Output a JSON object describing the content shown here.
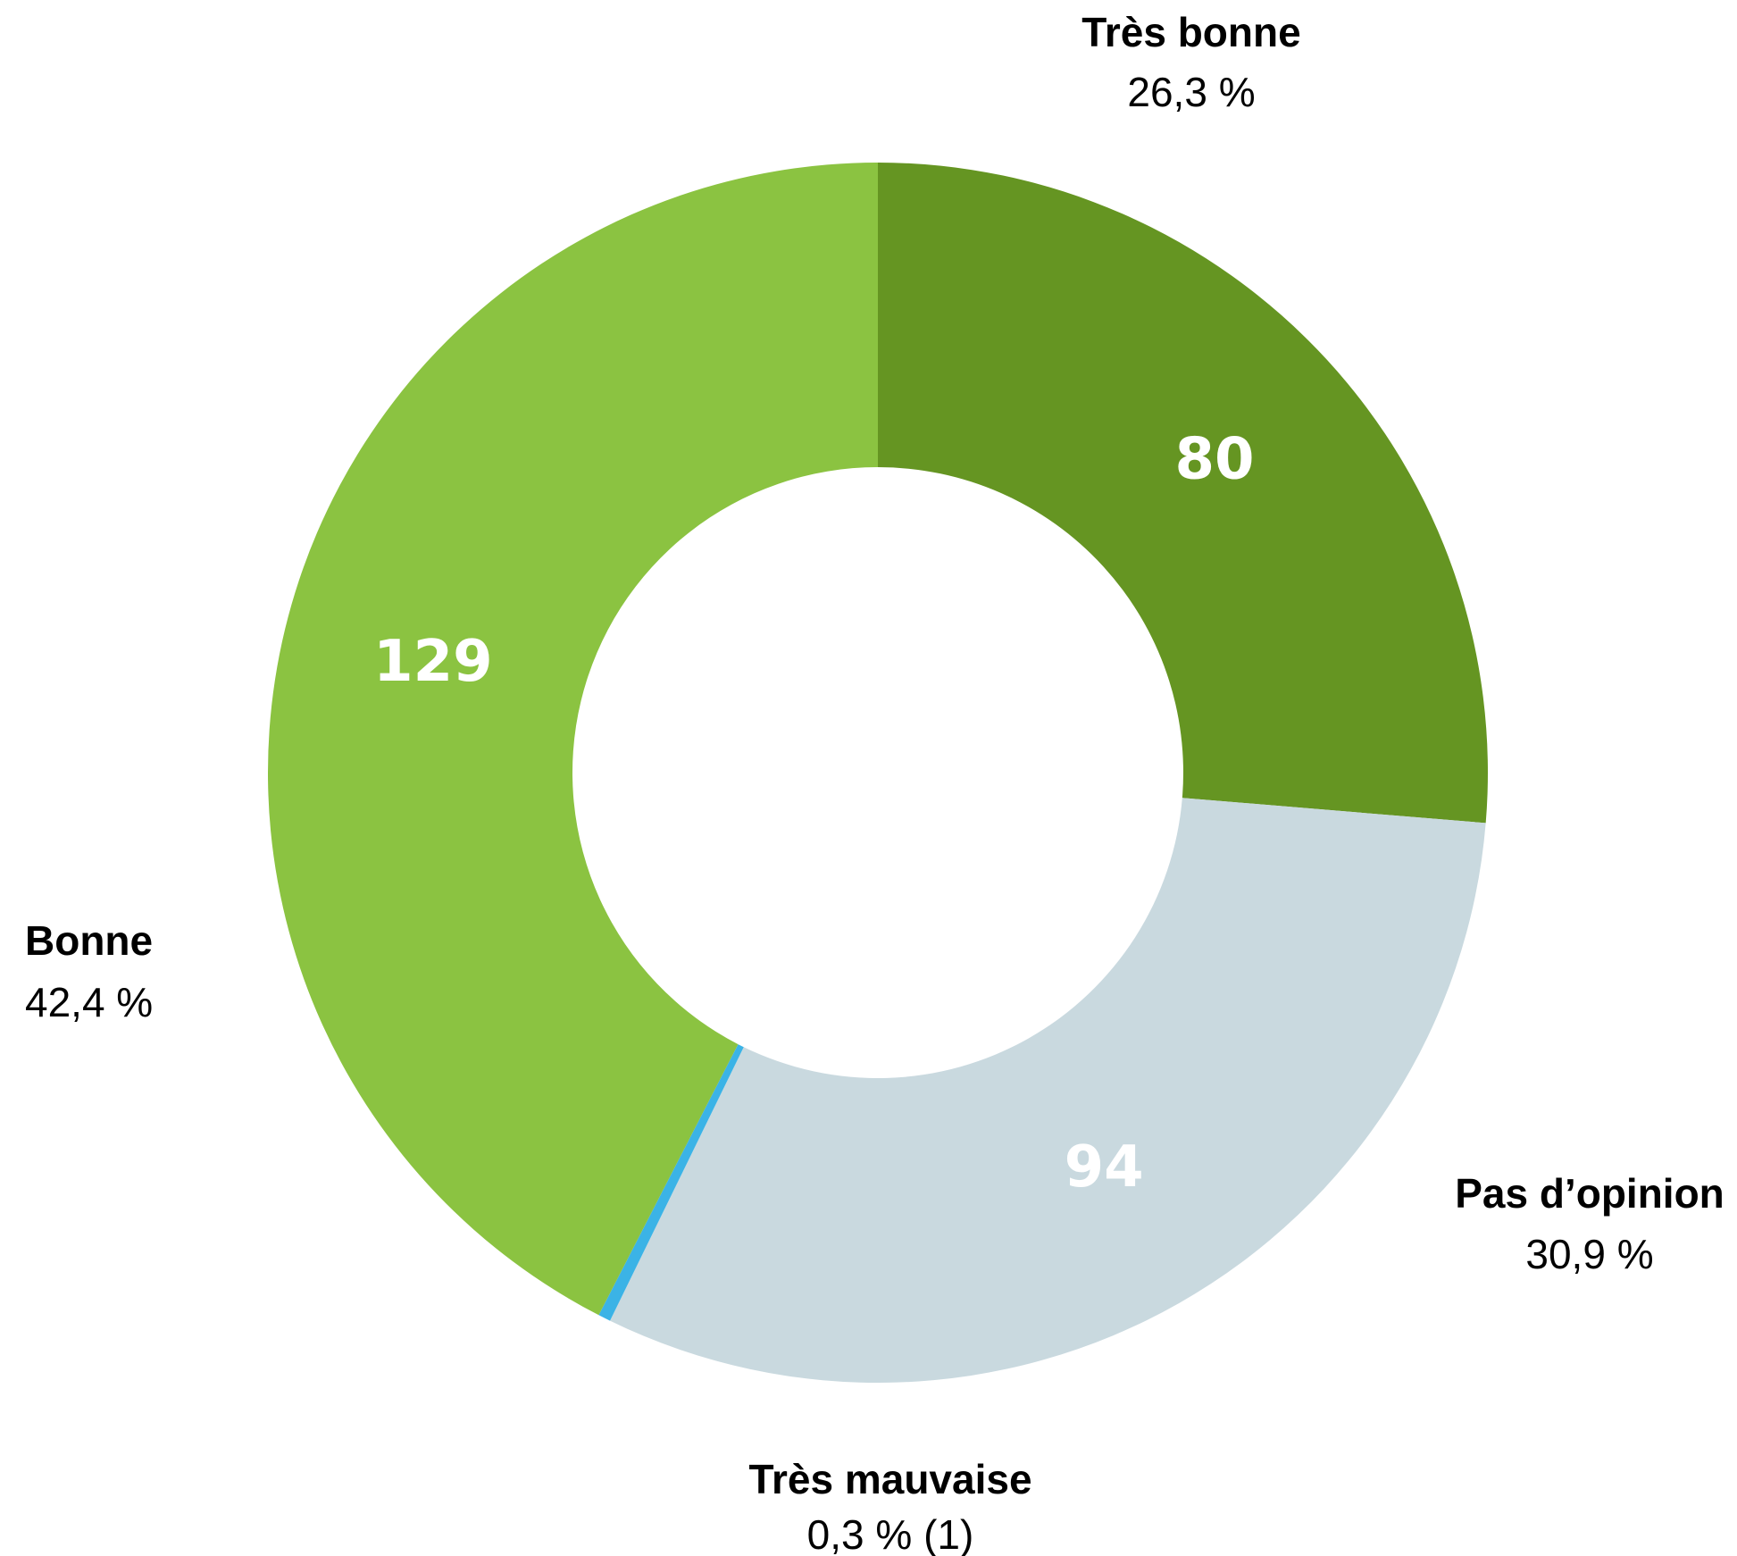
{
  "chart_data": {
    "type": "pie",
    "style": "donut",
    "start_angle_deg": 0,
    "slices": [
      {
        "name": "Très bonne",
        "value": 80,
        "percent_label": "26,3 %",
        "value_label": "80",
        "color": "#659522"
      },
      {
        "name": "Pas d’opinion",
        "value": 94,
        "percent_label": "30,9 %",
        "value_label": "94",
        "color": "#c9d9df"
      },
      {
        "name": "Très mauvaise",
        "value": 1,
        "percent_label": "0,3 % (1)",
        "value_label": "",
        "color": "#3bb3e6"
      },
      {
        "name": "Bonne",
        "value": 129,
        "percent_label": "42,4 %",
        "value_label": "129",
        "color": "#8bc341"
      }
    ]
  }
}
